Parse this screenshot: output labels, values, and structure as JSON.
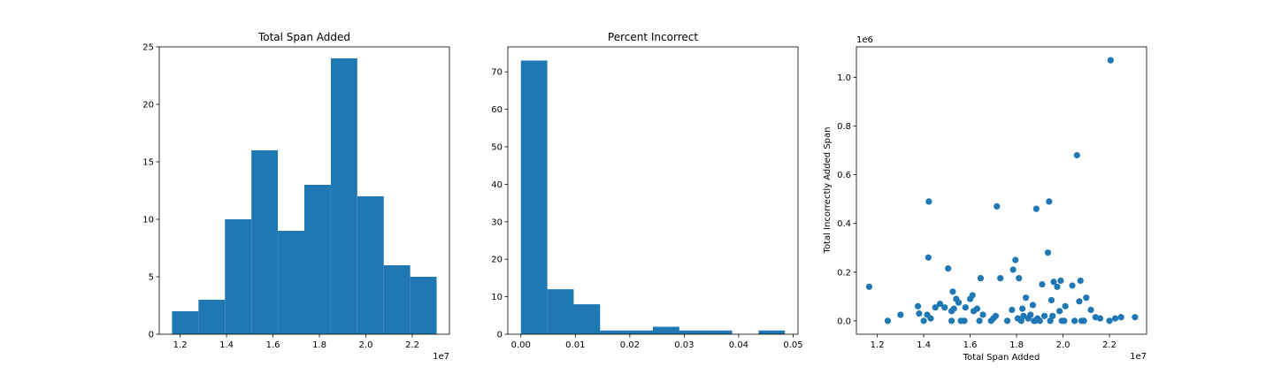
{
  "colors": {
    "bar": "#1f77b4",
    "point": "#1f77b4",
    "axis": "#000000",
    "background": "#ffffff"
  },
  "chart_data": [
    {
      "type": "bar",
      "title": "Total Span Added",
      "xlabel": "",
      "ylabel": "",
      "x_multiplier": "1e7",
      "bin_edges": [
        1.165,
        1.279,
        1.393,
        1.507,
        1.621,
        1.735,
        1.849,
        1.963,
        2.077,
        2.191,
        2.305
      ],
      "values": [
        2,
        3,
        10,
        16,
        9,
        13,
        24,
        12,
        6,
        5
      ],
      "xlim": [
        1.11,
        2.36
      ],
      "ylim": [
        0,
        25
      ],
      "xticks": [
        1.2,
        1.4,
        1.6,
        1.8,
        2.0,
        2.2
      ],
      "xtick_labels": [
        "1.2",
        "1.4",
        "1.6",
        "1.8",
        "2.0",
        "2.2"
      ],
      "yticks": [
        0,
        5,
        10,
        15,
        20,
        25
      ],
      "ytick_labels": [
        "0",
        "5",
        "10",
        "15",
        "20",
        "25"
      ],
      "grid": false
    },
    {
      "type": "bar",
      "title": "Percent Incorrect",
      "xlabel": "",
      "ylabel": "",
      "bin_edges": [
        0.0,
        0.00485,
        0.0097,
        0.01455,
        0.0194,
        0.02425,
        0.0291,
        0.03395,
        0.0388,
        0.04365,
        0.0485
      ],
      "values": [
        73,
        12,
        8,
        1,
        1,
        2,
        1,
        1,
        0,
        1
      ],
      "xlim": [
        -0.0024,
        0.0509
      ],
      "ylim": [
        0,
        76.65
      ],
      "xticks": [
        0.0,
        0.01,
        0.02,
        0.03,
        0.04,
        0.05
      ],
      "xtick_labels": [
        "0.00",
        "0.01",
        "0.02",
        "0.03",
        "0.04",
        "0.05"
      ],
      "yticks": [
        0,
        10,
        20,
        30,
        40,
        50,
        60,
        70
      ],
      "ytick_labels": [
        "0",
        "10",
        "20",
        "30",
        "40",
        "50",
        "60",
        "70"
      ],
      "grid": false
    },
    {
      "type": "scatter",
      "title": "",
      "xlabel": "Total Span Added",
      "ylabel": "Total Incorrectly Added Span",
      "x_multiplier": "1e7",
      "y_multiplier": "1e6",
      "xlim": [
        1.11,
        2.36
      ],
      "ylim": [
        -0.055,
        1.125
      ],
      "xticks": [
        1.2,
        1.4,
        1.6,
        1.8,
        2.0,
        2.2
      ],
      "xtick_labels": [
        "1.2",
        "1.4",
        "1.6",
        "1.8",
        "2.0",
        "2.2"
      ],
      "yticks": [
        0.0,
        0.2,
        0.4,
        0.6,
        0.8,
        1.0
      ],
      "ytick_labels": [
        "0.0",
        "0.2",
        "0.4",
        "0.6",
        "0.8",
        "1.0"
      ],
      "grid": false,
      "points": [
        [
          1.165,
          0.14
        ],
        [
          1.245,
          0.0
        ],
        [
          1.3,
          0.025
        ],
        [
          1.375,
          0.06
        ],
        [
          1.38,
          0.03
        ],
        [
          1.4,
          0.0
        ],
        [
          1.42,
          0.26
        ],
        [
          1.422,
          0.49
        ],
        [
          1.415,
          0.025
        ],
        [
          1.43,
          0.01
        ],
        [
          1.45,
          0.055
        ],
        [
          1.47,
          0.07
        ],
        [
          1.49,
          0.055
        ],
        [
          1.505,
          0.215
        ],
        [
          1.52,
          0.04
        ],
        [
          1.525,
          0.12
        ],
        [
          1.53,
          0.05
        ],
        [
          1.54,
          0.09
        ],
        [
          1.52,
          0.0
        ],
        [
          1.55,
          0.075
        ],
        [
          1.56,
          0.0
        ],
        [
          1.575,
          0.0
        ],
        [
          1.58,
          0.055
        ],
        [
          1.6,
          0.09
        ],
        [
          1.61,
          0.105
        ],
        [
          1.615,
          0.04
        ],
        [
          1.63,
          0.05
        ],
        [
          1.64,
          0.0
        ],
        [
          1.645,
          0.175
        ],
        [
          1.655,
          0.025
        ],
        [
          1.69,
          0.0
        ],
        [
          1.7,
          0.01
        ],
        [
          1.71,
          0.02
        ],
        [
          1.715,
          0.47
        ],
        [
          1.73,
          0.175
        ],
        [
          1.76,
          0.0
        ],
        [
          1.78,
          0.045
        ],
        [
          1.785,
          0.21
        ],
        [
          1.795,
          0.25
        ],
        [
          1.81,
          0.175
        ],
        [
          1.805,
          0.01
        ],
        [
          1.82,
          0.0
        ],
        [
          1.825,
          0.05
        ],
        [
          1.83,
          0.02
        ],
        [
          1.84,
          0.095
        ],
        [
          1.85,
          0.01
        ],
        [
          1.86,
          0.025
        ],
        [
          1.87,
          0.065
        ],
        [
          1.875,
          0.0
        ],
        [
          1.88,
          0.0
        ],
        [
          1.885,
          0.46
        ],
        [
          1.89,
          0.01
        ],
        [
          1.9,
          0.0
        ],
        [
          1.91,
          0.15
        ],
        [
          1.92,
          0.02
        ],
        [
          1.935,
          0.28
        ],
        [
          1.94,
          0.49
        ],
        [
          1.945,
          0.0
        ],
        [
          1.95,
          0.085
        ],
        [
          1.955,
          0.02
        ],
        [
          1.96,
          0.16
        ],
        [
          1.975,
          0.14
        ],
        [
          1.985,
          0.04
        ],
        [
          1.99,
          0.165
        ],
        [
          1.995,
          0.0
        ],
        [
          2.005,
          0.0
        ],
        [
          2.01,
          0.06
        ],
        [
          2.04,
          0.145
        ],
        [
          2.05,
          0.0
        ],
        [
          2.06,
          0.68
        ],
        [
          2.07,
          0.08
        ],
        [
          2.075,
          0.165
        ],
        [
          2.08,
          0.0
        ],
        [
          2.09,
          0.0
        ],
        [
          2.1,
          0.095
        ],
        [
          2.12,
          0.045
        ],
        [
          2.14,
          0.015
        ],
        [
          2.16,
          0.01
        ],
        [
          2.2,
          0.0
        ],
        [
          2.205,
          1.07
        ],
        [
          2.225,
          0.01
        ],
        [
          2.25,
          0.015
        ],
        [
          2.31,
          0.015
        ]
      ]
    }
  ]
}
